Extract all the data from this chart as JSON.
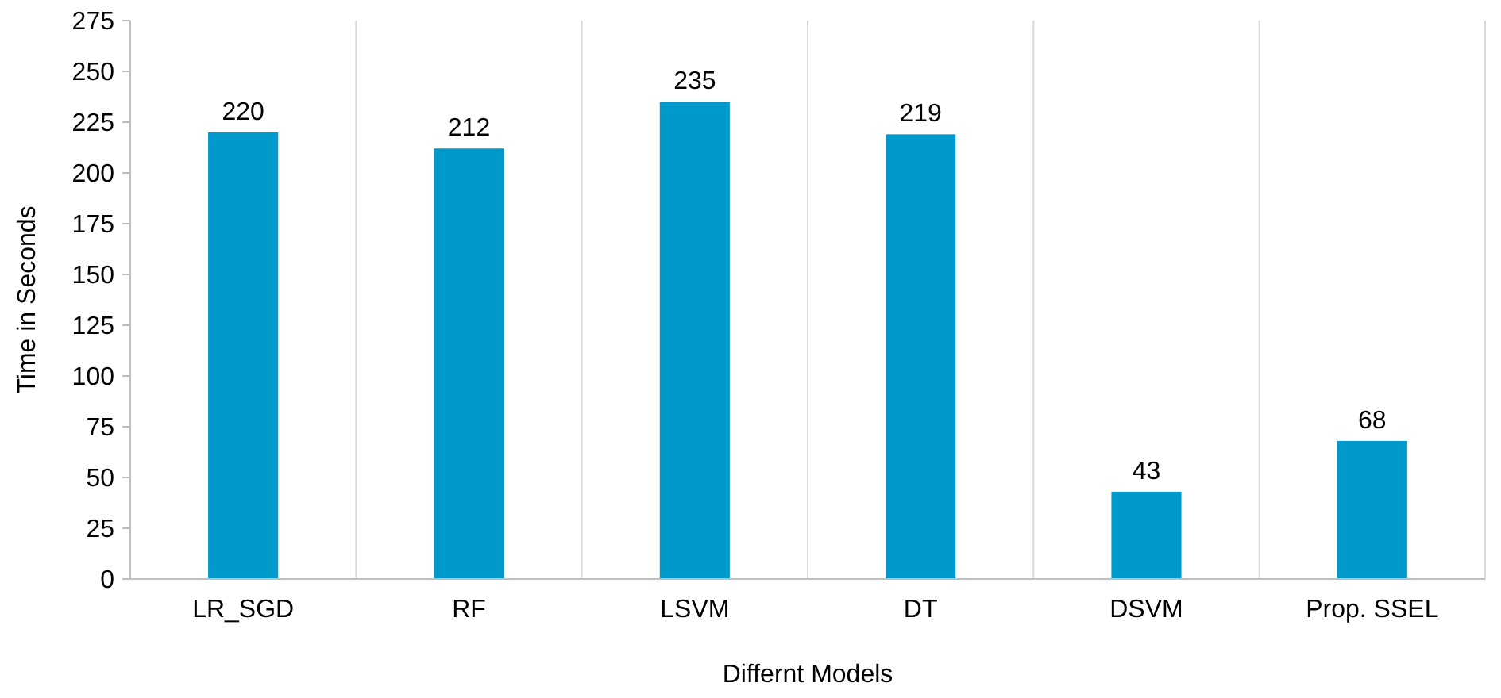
{
  "chart_data": {
    "type": "bar",
    "xlabel": "Differnt Models",
    "ylabel": "Time in Seconds",
    "categories": [
      "LR_SGD",
      "RF",
      "LSVM",
      "DT",
      "DSVM",
      "Prop. SSEL"
    ],
    "values": [
      220,
      212,
      235,
      219,
      43,
      68
    ],
    "color": "#0099cc",
    "ylim": [
      0,
      275
    ],
    "yticks": [
      0,
      25,
      50,
      75,
      100,
      125,
      150,
      175,
      200,
      225,
      250,
      275
    ],
    "grid": "x",
    "data_labels": true
  }
}
